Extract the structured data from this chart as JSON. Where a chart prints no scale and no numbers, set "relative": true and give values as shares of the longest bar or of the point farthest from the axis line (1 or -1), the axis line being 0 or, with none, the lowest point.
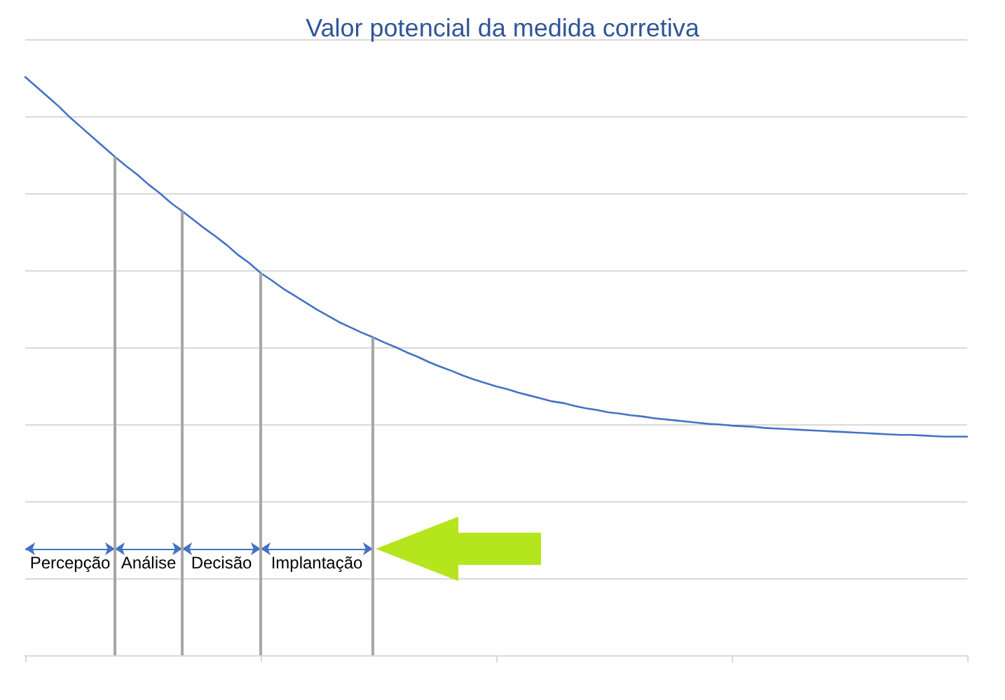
{
  "chart_data": {
    "type": "line",
    "title": "Valor potencial da medida corretiva",
    "relative": true,
    "grid": "y",
    "marker": "none",
    "line_style": "solid",
    "categories": [
      null,
      null,
      null,
      null,
      null,
      null,
      null,
      null,
      null,
      null,
      null,
      null,
      null,
      null,
      null,
      null,
      null,
      null,
      null,
      null,
      null,
      null,
      null,
      null,
      null,
      null,
      null,
      null,
      null,
      null,
      null,
      null,
      null,
      null,
      null,
      null,
      null,
      null,
      null,
      null,
      null,
      null,
      null,
      null,
      null,
      null,
      null,
      null,
      null,
      null,
      null,
      null,
      null,
      null,
      null,
      null,
      null,
      null,
      null,
      null,
      null,
      null,
      null,
      null,
      null,
      null,
      null,
      null,
      null,
      null,
      null,
      null,
      null,
      null,
      null,
      null,
      null,
      null,
      null,
      null,
      null,
      null,
      null,
      null,
      null
    ],
    "series": [
      {
        "color": "#4472c4",
        "values": [
          1.0,
          0.983,
          0.966,
          0.949,
          0.93,
          0.913,
          0.896,
          0.879,
          0.862,
          0.846,
          0.831,
          0.814,
          0.799,
          0.782,
          0.768,
          0.753,
          0.738,
          0.724,
          0.709,
          0.692,
          0.678,
          0.661,
          0.648,
          0.634,
          0.622,
          0.61,
          0.598,
          0.587,
          0.576,
          0.567,
          0.558,
          0.55,
          0.541,
          0.533,
          0.524,
          0.516,
          0.507,
          0.499,
          0.492,
          0.484,
          0.477,
          0.471,
          0.465,
          0.46,
          0.454,
          0.449,
          0.444,
          0.439,
          0.436,
          0.431,
          0.427,
          0.424,
          0.42,
          0.418,
          0.415,
          0.413,
          0.41,
          0.408,
          0.406,
          0.404,
          0.402,
          0.4,
          0.399,
          0.397,
          0.396,
          0.395,
          0.393,
          0.392,
          0.391,
          0.39,
          0.389,
          0.388,
          0.387,
          0.386,
          0.385,
          0.384,
          0.383,
          0.382,
          0.381,
          0.381,
          0.38,
          0.379,
          0.378,
          0.378,
          0.378
        ]
      }
    ],
    "annotations": [
      "Percepção",
      "Análise",
      "Decisão",
      "Implantação"
    ]
  }
}
